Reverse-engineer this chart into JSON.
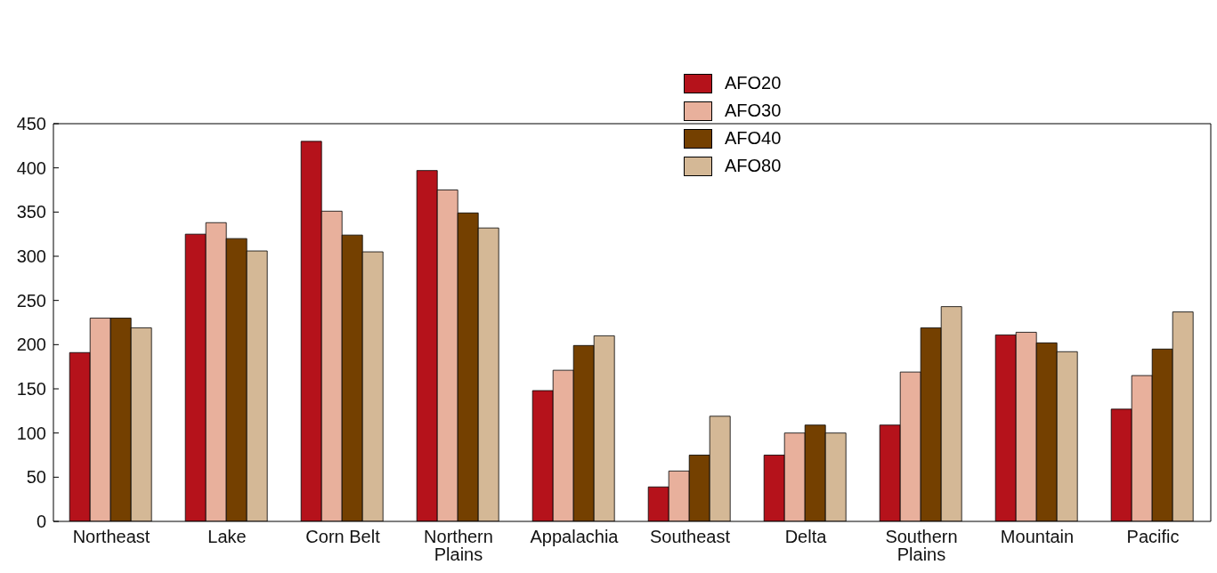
{
  "chart_data": {
    "type": "bar",
    "categories": [
      "Northeast",
      "Lake",
      "Corn Belt",
      "Northern Plains",
      "Appalachia",
      "Southeast",
      "Delta",
      "Southern Plains",
      "Mountain",
      "Pacific"
    ],
    "series": [
      {
        "name": "AFO20",
        "color": "#b5121b",
        "values": [
          191,
          325,
          430,
          397,
          148,
          39,
          75,
          109,
          211,
          127
        ]
      },
      {
        "name": "AFO30",
        "color": "#e8b09c",
        "values": [
          230,
          338,
          351,
          375,
          171,
          57,
          100,
          169,
          214,
          165
        ]
      },
      {
        "name": "AFO40",
        "color": "#744000",
        "values": [
          230,
          320,
          324,
          349,
          199,
          75,
          109,
          219,
          202,
          195
        ]
      },
      {
        "name": "AFO80",
        "color": "#d4b896",
        "values": [
          219,
          306,
          305,
          332,
          210,
          119,
          100,
          243,
          192,
          237
        ]
      }
    ],
    "ylim": [
      0,
      450
    ],
    "yticks": [
      0,
      50,
      100,
      150,
      200,
      250,
      300,
      350,
      400,
      450
    ],
    "grid": false,
    "legend": "top"
  }
}
